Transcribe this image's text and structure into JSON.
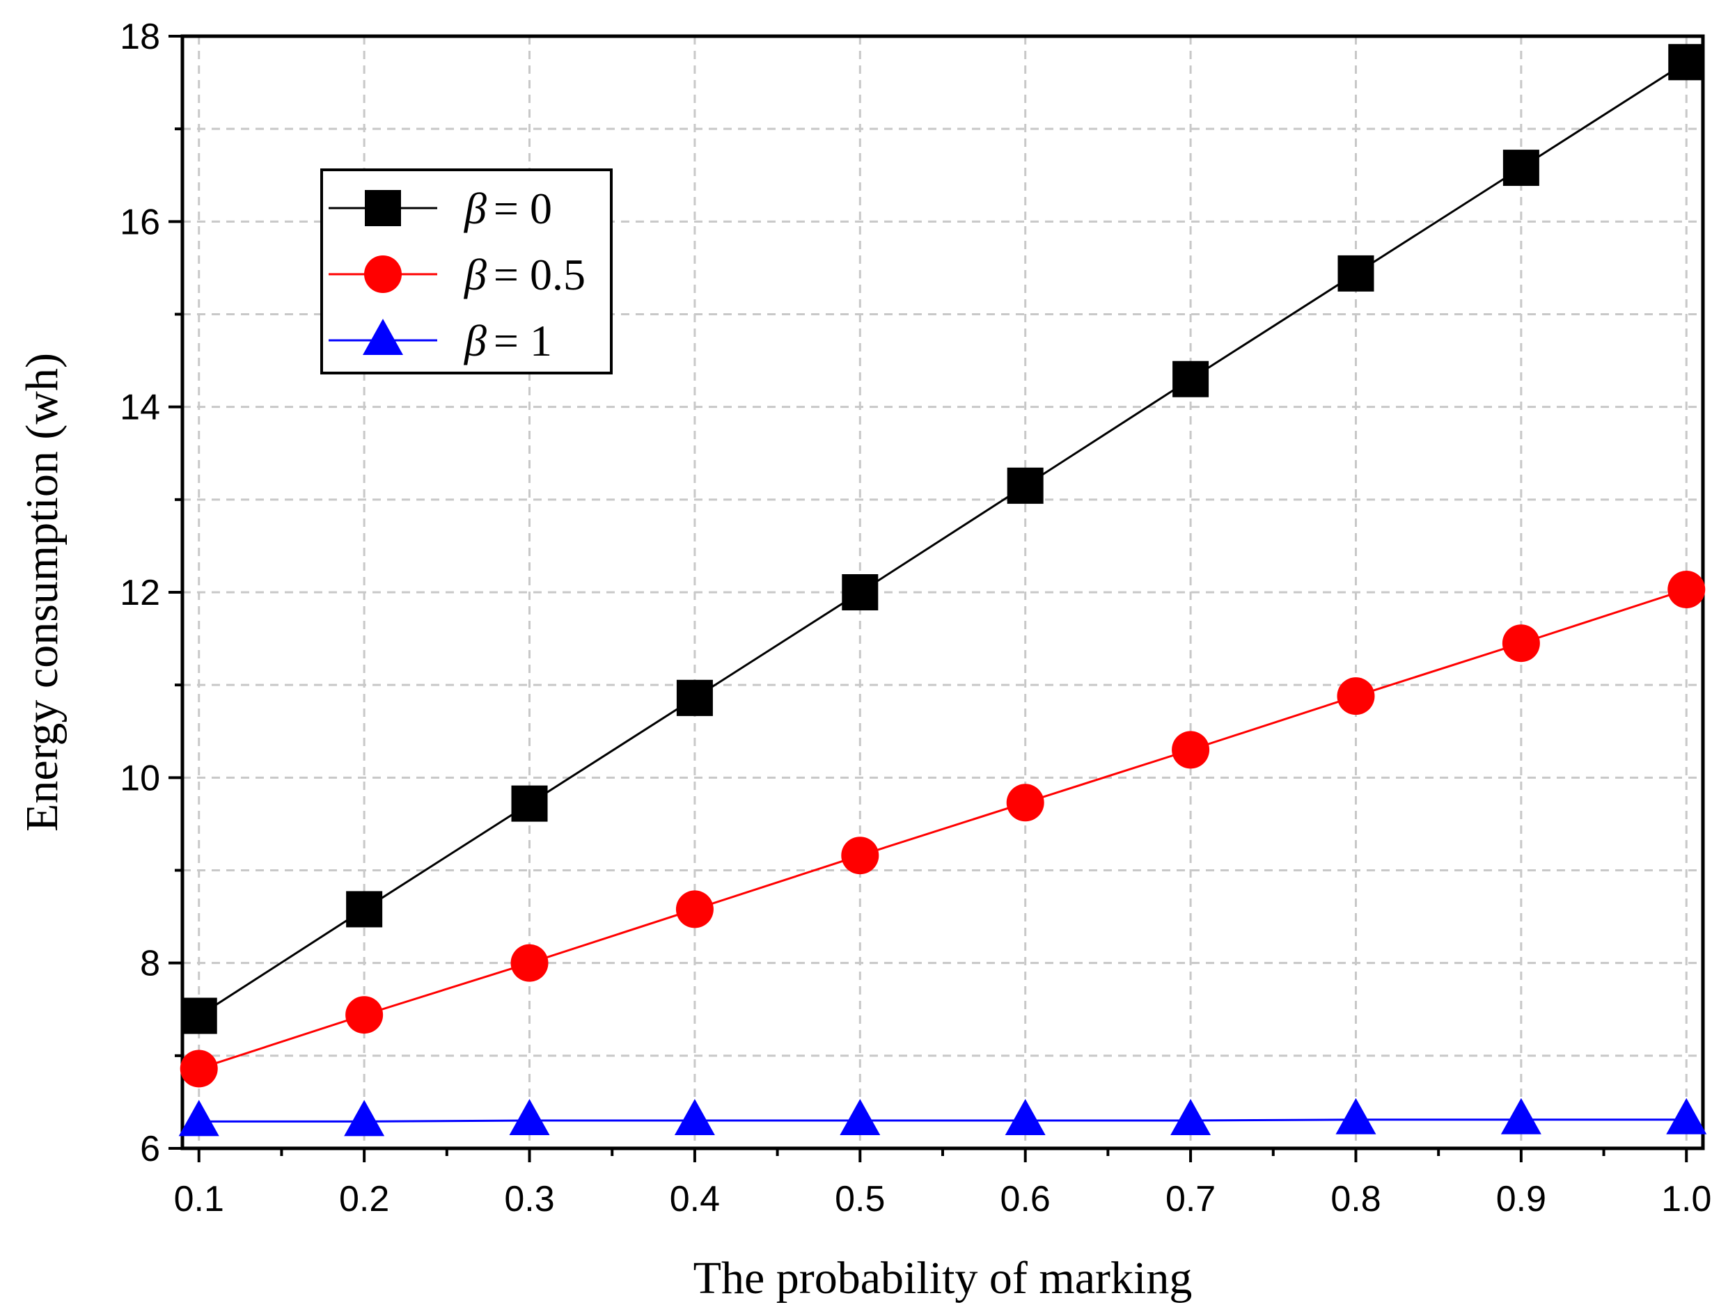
{
  "chart_data": {
    "type": "line",
    "title": "",
    "xlabel": "The probability of marking",
    "ylabel": "Energy consumption (wh)",
    "x": [
      0.1,
      0.2,
      0.3,
      0.4,
      0.5,
      0.6,
      0.7,
      0.8,
      0.9,
      1.0
    ],
    "xlim": [
      0.09,
      1.01
    ],
    "ylim": [
      6,
      18
    ],
    "x_ticks": [
      "0.1",
      "0.2",
      "0.3",
      "0.4",
      "0.5",
      "0.6",
      "0.7",
      "0.8",
      "0.9",
      "1.0"
    ],
    "y_ticks": [
      "6",
      "8",
      "10",
      "12",
      "14",
      "16",
      "18"
    ],
    "grid": true,
    "legend_position": "top-left",
    "series": [
      {
        "name": "β = 0",
        "beta_symbol": "β",
        "value_label": "= 0",
        "color": "#000000",
        "marker": "square",
        "values": [
          7.43,
          8.58,
          9.72,
          10.86,
          12.0,
          13.15,
          14.3,
          15.44,
          16.58,
          17.72
        ]
      },
      {
        "name": "β = 0.5",
        "beta_symbol": "β",
        "value_label": "= 0.5",
        "color": "#ff0000",
        "marker": "circle",
        "values": [
          6.86,
          7.44,
          8.0,
          8.58,
          9.16,
          9.73,
          10.3,
          10.88,
          11.45,
          12.03
        ]
      },
      {
        "name": "β = 1",
        "beta_symbol": "β",
        "value_label": "= 1",
        "color": "#0000ff",
        "marker": "triangle",
        "values": [
          6.29,
          6.29,
          6.3,
          6.3,
          6.3,
          6.3,
          6.3,
          6.31,
          6.31,
          6.31
        ]
      }
    ]
  }
}
